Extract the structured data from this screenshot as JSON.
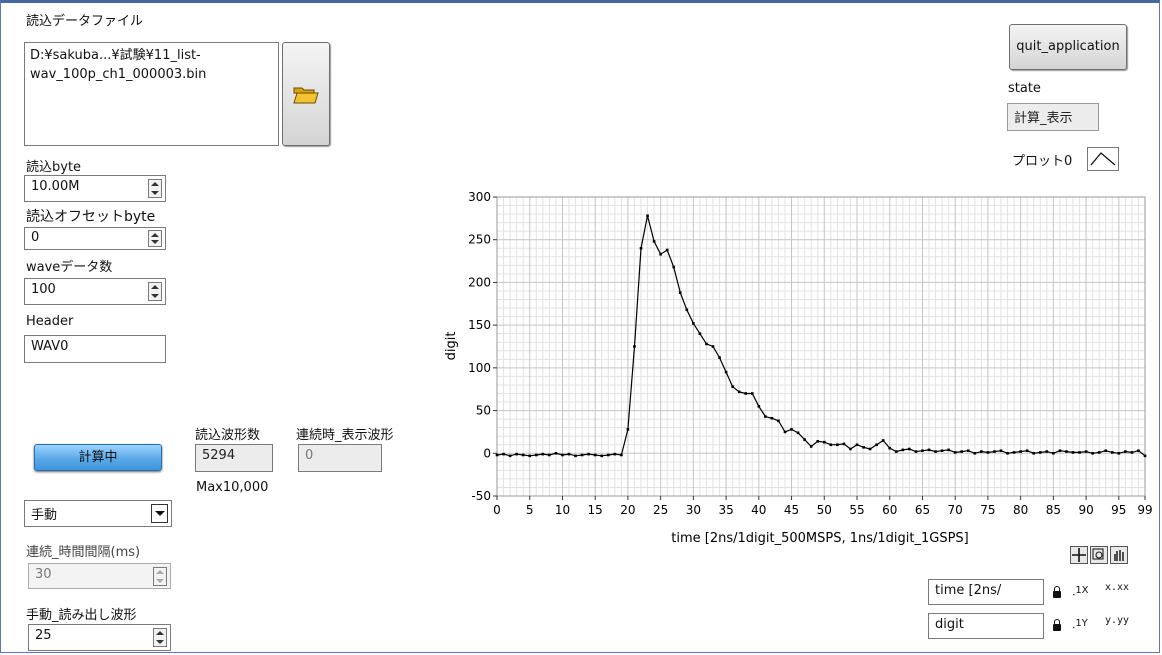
{
  "file": {
    "label": "読込データファイル",
    "path_line1": "D:¥sakuba...¥試験¥11_list-",
    "path_line2": "wav_100p_ch1_000003.bin"
  },
  "read_bytes": {
    "label": "読込byte",
    "value": "10.00M"
  },
  "read_offset": {
    "label": "読込オフセットbyte",
    "value": "0"
  },
  "wave_count": {
    "label": "waveデータ数",
    "value": "100"
  },
  "header": {
    "label": "Header",
    "value": "WAV0"
  },
  "calc_button": {
    "label": "計算中"
  },
  "waveform_count": {
    "label": "読込波形数",
    "value": "5294",
    "max_note": "Max10,000"
  },
  "continuous_display": {
    "label": "連続時_表示波形",
    "value": "0"
  },
  "mode_select": {
    "value": "手動"
  },
  "interval": {
    "label": "連続_時間間隔(ms)",
    "value": "30"
  },
  "manual_read": {
    "label": "手動_読み出し波形",
    "value": "25"
  },
  "quit_button": {
    "label": "quit_application"
  },
  "state": {
    "label": "state",
    "value": "計算_表示"
  },
  "legend": {
    "label": "プロット0"
  },
  "scale_x_name": "time [2ns/",
  "scale_y_name": "digit",
  "scale_x_format": "x.xx",
  "scale_y_format": "y.yy",
  "colors": {
    "plot_line": "#000000",
    "grid_major": "#c4c4c4",
    "grid_minor": "#e3e3e3",
    "calc_button": "#5aaae9"
  },
  "chart_data": {
    "type": "line",
    "xlabel": "time [2ns/1digit_500MSPS, 1ns/1digit_1GSPS]",
    "ylabel": "digit",
    "xlim": [
      0,
      99
    ],
    "ylim": [
      -50,
      300
    ],
    "x_ticks": [
      0,
      5,
      10,
      15,
      20,
      25,
      30,
      35,
      40,
      45,
      50,
      55,
      60,
      65,
      70,
      75,
      80,
      85,
      90,
      95,
      99
    ],
    "y_ticks": [
      300,
      250,
      200,
      150,
      100,
      50,
      0,
      -50
    ],
    "series": [
      {
        "name": "プロット0",
        "values": [
          -2,
          -1,
          -3,
          -1,
          -2,
          -3,
          -2,
          -1,
          -2,
          0,
          -2,
          -1,
          -3,
          -2,
          -1,
          -2,
          -3,
          -2,
          -1,
          -2,
          28,
          125,
          240,
          278,
          248,
          233,
          238,
          218,
          188,
          168,
          152,
          140,
          128,
          125,
          112,
          95,
          78,
          72,
          70,
          70,
          55,
          43,
          41,
          38,
          25,
          28,
          24,
          16,
          8,
          14,
          13,
          10,
          10,
          11,
          5,
          10,
          7,
          5,
          10,
          15,
          6,
          2,
          4,
          5,
          2,
          3,
          4,
          2,
          3,
          4,
          1,
          2,
          3,
          0,
          2,
          1,
          2,
          3,
          0,
          1,
          2,
          3,
          0,
          1,
          2,
          0,
          3,
          2,
          1,
          1,
          2,
          0,
          1,
          3,
          1,
          0,
          2,
          1,
          3,
          -3
        ]
      }
    ]
  }
}
